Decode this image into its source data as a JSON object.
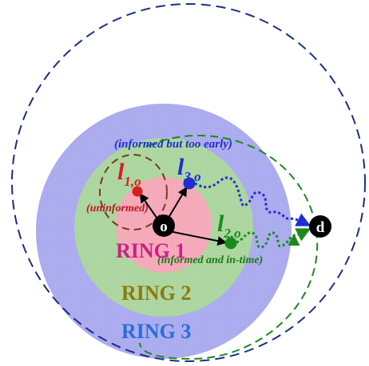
{
  "rings": [
    {
      "label": "RING 1",
      "color": "#cc1f8a",
      "fill": "#f4a6b6"
    },
    {
      "label": "RING 2",
      "color": "#8a7a10",
      "fill": "#a9d49c"
    },
    {
      "label": "RING 3",
      "color": "#2a6fd6",
      "fill": "#a8a8ee"
    }
  ],
  "nodes": {
    "origin": {
      "label": "o"
    },
    "destination": {
      "label": "d"
    },
    "l1": {
      "base": "l",
      "sub": "1,o",
      "color": "#d6201e"
    },
    "l2": {
      "base": "l",
      "sub": "2,o",
      "color": "#1a8a1a"
    },
    "l3": {
      "base": "l",
      "sub": "3,o",
      "color": "#1d2fd0"
    }
  },
  "annotations": {
    "uninformed": {
      "text": "(uninformed)",
      "color": "#c0151c"
    },
    "too_early": {
      "text": "(informed but too early)",
      "color": "#1d2fd0"
    },
    "in_time": {
      "text": "(informed and in-time)",
      "color": "#1a7a1a"
    }
  },
  "colors": {
    "outer_dash": "#1a2e8a",
    "l1_dash": "#7a3a10",
    "l2_dash": "#1a8a1a",
    "l3_path": "#1d2fd0"
  }
}
